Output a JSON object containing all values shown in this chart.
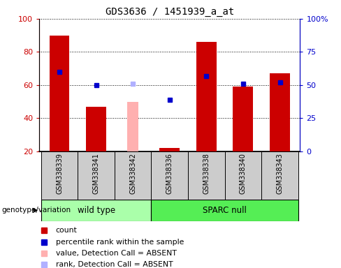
{
  "title": "GDS3636 / 1451939_a_at",
  "samples": [
    "GSM338339",
    "GSM338341",
    "GSM338342",
    "GSM338336",
    "GSM338338",
    "GSM338340",
    "GSM338343"
  ],
  "count_values": [
    90,
    47,
    null,
    22,
    86,
    59,
    67
  ],
  "rank_values": [
    60,
    50,
    null,
    39,
    57,
    51,
    52
  ],
  "absent_value_bars": [
    null,
    null,
    50,
    null,
    null,
    null,
    null
  ],
  "absent_rank_bars": [
    null,
    null,
    51,
    null,
    null,
    null,
    null
  ],
  "count_color": "#cc0000",
  "rank_color": "#0000cc",
  "absent_value_color": "#ffb0b0",
  "absent_rank_color": "#b0b0ff",
  "ylim_left": [
    20,
    100
  ],
  "ylim_right": [
    0,
    100
  ],
  "yticks_left": [
    20,
    40,
    60,
    80,
    100
  ],
  "yticks_right": [
    0,
    25,
    50,
    75,
    100
  ],
  "yticklabels_right": [
    "0",
    "25",
    "50",
    "75",
    "100%"
  ],
  "wt_color": "#aaffaa",
  "sparc_color": "#55ee55",
  "bg_color": "#cccccc",
  "legend_items": [
    {
      "label": "count",
      "color": "#cc0000"
    },
    {
      "label": "percentile rank within the sample",
      "color": "#0000cc"
    },
    {
      "label": "value, Detection Call = ABSENT",
      "color": "#ffb0b0"
    },
    {
      "label": "rank, Detection Call = ABSENT",
      "color": "#b0b0ff"
    }
  ]
}
